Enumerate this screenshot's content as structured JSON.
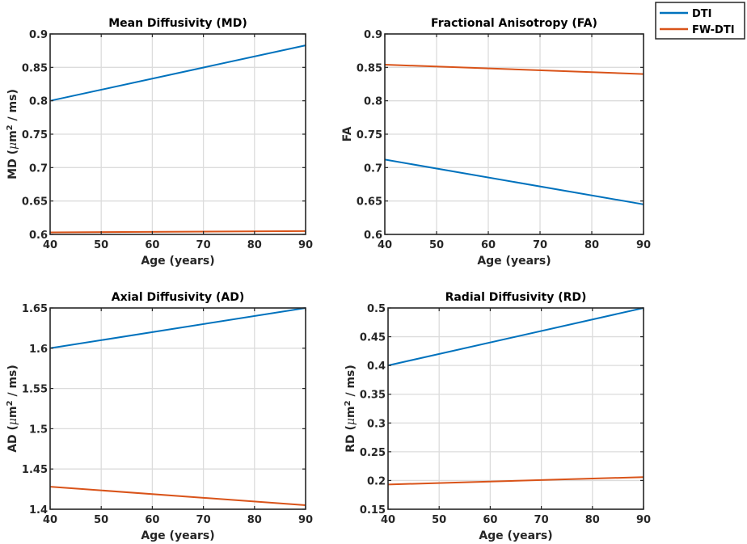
{
  "legend": {
    "entries": [
      {
        "label": "DTI",
        "color": "#0072BD"
      },
      {
        "label": "FW-DTI",
        "color": "#D95319"
      }
    ],
    "placement": "top-right outside"
  },
  "chart_data": [
    {
      "type": "line",
      "title": "Mean Diffusivity (MD)",
      "xlabel": "Age (years)",
      "ylabel_prefix": "MD (",
      "ylabel_mu": "μ",
      "ylabel_unit": "m",
      "ylabel_sup": "2",
      "ylabel_suffix": "/ ms)",
      "xlim": [
        40,
        90
      ],
      "ylim": [
        0.6,
        0.9
      ],
      "xticks": [
        40,
        50,
        60,
        70,
        80,
        90
      ],
      "yticks": [
        "0.6",
        "0.65",
        "0.7",
        "0.75",
        "0.8",
        "0.85",
        "0.9"
      ],
      "grid": true,
      "series": [
        {
          "name": "DTI",
          "x": [
            40,
            90
          ],
          "y": [
            0.8,
            0.883
          ]
        },
        {
          "name": "FW-DTI",
          "x": [
            40,
            90
          ],
          "y": [
            0.603,
            0.605
          ]
        }
      ]
    },
    {
      "type": "line",
      "title": "Fractional Anisotropy (FA)",
      "xlabel": "Age (years)",
      "ylabel_plain": "FA",
      "xlim": [
        40,
        90
      ],
      "ylim": [
        0.6,
        0.9
      ],
      "xticks": [
        40,
        50,
        60,
        70,
        80,
        90
      ],
      "yticks": [
        "0.6",
        "0.65",
        "0.7",
        "0.75",
        "0.8",
        "0.85",
        "0.9"
      ],
      "grid": true,
      "series": [
        {
          "name": "DTI",
          "x": [
            40,
            90
          ],
          "y": [
            0.712,
            0.645
          ]
        },
        {
          "name": "FW-DTI",
          "x": [
            40,
            90
          ],
          "y": [
            0.854,
            0.84
          ]
        }
      ]
    },
    {
      "type": "line",
      "title": "Axial Diffusivity (AD)",
      "xlabel": "Age (years)",
      "ylabel_prefix": "AD (",
      "ylabel_mu": "μ",
      "ylabel_unit": "m",
      "ylabel_sup": "2",
      "ylabel_suffix": "/ ms)",
      "xlim": [
        40,
        90
      ],
      "ylim": [
        1.4,
        1.65
      ],
      "xticks": [
        40,
        50,
        60,
        70,
        80,
        90
      ],
      "yticks": [
        "1.4",
        "1.45",
        "1.5",
        "1.55",
        "1.6",
        "1.65"
      ],
      "grid": true,
      "series": [
        {
          "name": "DTI",
          "x": [
            40,
            90
          ],
          "y": [
            1.6,
            1.65
          ]
        },
        {
          "name": "FW-DTI",
          "x": [
            40,
            90
          ],
          "y": [
            1.428,
            1.405
          ]
        }
      ]
    },
    {
      "type": "line",
      "title": "Radial Diffusivity (RD)",
      "xlabel": "Age (years)",
      "ylabel_prefix": "RD (",
      "ylabel_mu": "μ",
      "ylabel_unit": "m",
      "ylabel_sup": "2",
      "ylabel_suffix": "/ ms)",
      "xlim": [
        40,
        90
      ],
      "ylim": [
        0.15,
        0.5
      ],
      "xticks": [
        40,
        50,
        60,
        70,
        80,
        90
      ],
      "yticks": [
        "0.15",
        "0.2",
        "0.25",
        "0.3",
        "0.35",
        "0.4",
        "0.45",
        "0.5"
      ],
      "grid": true,
      "series": [
        {
          "name": "DTI",
          "x": [
            40,
            90
          ],
          "y": [
            0.4,
            0.5
          ]
        },
        {
          "name": "FW-DTI",
          "x": [
            40,
            90
          ],
          "y": [
            0.193,
            0.206
          ]
        }
      ]
    }
  ]
}
